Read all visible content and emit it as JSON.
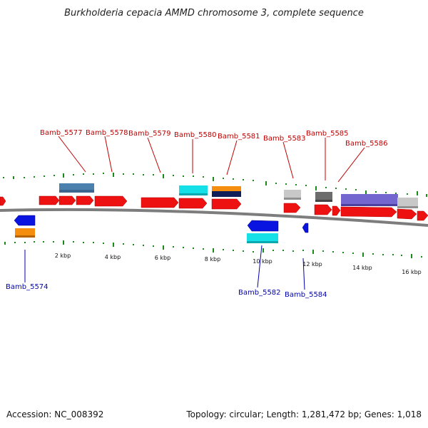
{
  "title": "Burkholderia cepacia AMMD chromosome 3, complete sequence",
  "footer": {
    "accession": "Accession: NC_008392",
    "topology": "Topology: circular; Length: 1,281,472 bp; Genes: 1,018"
  },
  "colors": {
    "forward_gene": "#ee1111",
    "reverse_gene": "#0a14e0",
    "label_top": "#c00000",
    "label_bottom": "#0000aa",
    "tick": "#1a8a1a",
    "backbone": "#888888",
    "steelblue": "#4b7fae",
    "cyan": "#15e0e8",
    "orange": "#f58e0f",
    "navy": "#0e1f5a",
    "light_gray": "#c8c8c8",
    "dark_gray": "#6c6c6c",
    "purple": "#7366cf"
  },
  "scale": {
    "ticks": [
      "2 kbp",
      "4 kbp",
      "6 kbp",
      "8 kbp",
      "10 kbp",
      "12 kbp",
      "14 kbp",
      "16 kbp"
    ]
  },
  "labels_top": [
    "Bamb_5577",
    "Bamb_5578",
    "Bamb_5579",
    "Bamb_5580",
    "Bamb_5581",
    "Bamb_5583",
    "Bamb_5585",
    "Bamb_5586"
  ],
  "labels_bottom": [
    "Bamb_5574",
    "Bamb_5582",
    "Bamb_5584"
  ]
}
